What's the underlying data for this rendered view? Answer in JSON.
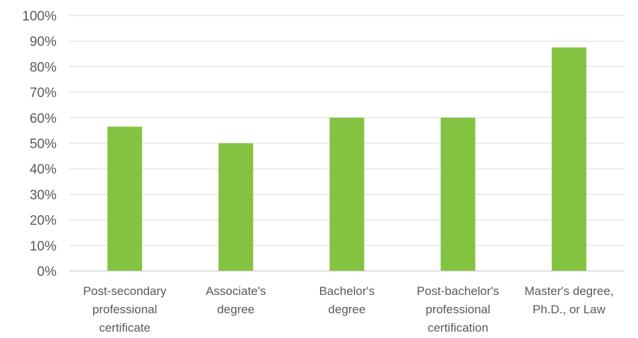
{
  "chart_data": {
    "type": "bar",
    "title": "",
    "xlabel": "",
    "ylabel": "",
    "categories": [
      [
        "Post-secondary",
        "professional",
        "certificate"
      ],
      [
        "Associate's",
        "degree"
      ],
      [
        "Bachelor's",
        "degree"
      ],
      [
        "Post-bachelor's",
        "professional",
        "certification"
      ],
      [
        "Master's degree,",
        "Ph.D., or Law"
      ]
    ],
    "values": [
      56.5,
      50,
      60,
      60,
      87.5
    ],
    "ylim": [
      0,
      100
    ],
    "yticks": [
      0,
      10,
      20,
      30,
      40,
      50,
      60,
      70,
      80,
      90,
      100
    ],
    "ytick_labels": [
      "0%",
      "10%",
      "20%",
      "30%",
      "40%",
      "50%",
      "60%",
      "70%",
      "80%",
      "90%",
      "100%"
    ],
    "grid": true,
    "legend": "none",
    "bar_color": "#83c341"
  }
}
